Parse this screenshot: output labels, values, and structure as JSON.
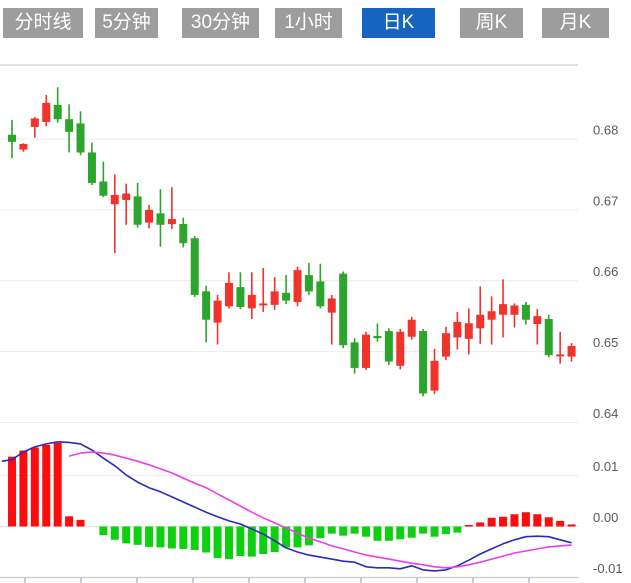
{
  "toolbar": {
    "tabs": [
      {
        "label": "分时线",
        "active": false
      },
      {
        "label": "5分钟",
        "active": false
      },
      {
        "label": "30分钟",
        "active": false
      },
      {
        "label": "1小时",
        "active": false
      },
      {
        "label": "日K",
        "active": true
      },
      {
        "label": "周K",
        "active": false
      },
      {
        "label": "月K",
        "active": false
      }
    ],
    "active_color": "#1565c0",
    "inactive_color": "#9d9d9d",
    "text_color": "#ffffff"
  },
  "chart_data": {
    "type": "candlestick",
    "subchart": "macd",
    "legend_position": "none",
    "grid": true,
    "price_axis": {
      "labels": [
        "0.68",
        "0.67",
        "0.66",
        "0.65",
        "0.64"
      ],
      "values": [
        0.68,
        0.67,
        0.66,
        0.65,
        0.64
      ],
      "range": [
        0.636,
        0.69
      ]
    },
    "macd_axis": {
      "labels": [
        "0.01",
        "0.00",
        "-0.01"
      ],
      "values": [
        0.01,
        0.0,
        -0.01
      ],
      "range": [
        -0.011,
        0.018
      ]
    },
    "candles_ohlc": [
      [
        0.6806,
        0.6827,
        0.6773,
        0.6796
      ],
      [
        0.6785,
        0.6794,
        0.6782,
        0.6793
      ],
      [
        0.6817,
        0.6831,
        0.6802,
        0.6829
      ],
      [
        0.6824,
        0.6862,
        0.6818,
        0.6851
      ],
      [
        0.6848,
        0.6873,
        0.6823,
        0.6828
      ],
      [
        0.6828,
        0.6849,
        0.6781,
        0.681
      ],
      [
        0.6822,
        0.6839,
        0.6777,
        0.6781
      ],
      [
        0.6781,
        0.6795,
        0.6735,
        0.6738
      ],
      [
        0.674,
        0.6768,
        0.6718,
        0.672
      ],
      [
        0.6708,
        0.675,
        0.6639,
        0.6721
      ],
      [
        0.6714,
        0.6737,
        0.6679,
        0.6723
      ],
      [
        0.6719,
        0.6738,
        0.6675,
        0.6679
      ],
      [
        0.6682,
        0.6707,
        0.6674,
        0.67
      ],
      [
        0.6695,
        0.6729,
        0.6648,
        0.6679
      ],
      [
        0.668,
        0.6732,
        0.6673,
        0.6687
      ],
      [
        0.668,
        0.6689,
        0.6647,
        0.6653
      ],
      [
        0.666,
        0.6663,
        0.6577,
        0.658
      ],
      [
        0.6585,
        0.6593,
        0.6513,
        0.6545
      ],
      [
        0.6541,
        0.658,
        0.651,
        0.6572
      ],
      [
        0.6564,
        0.6612,
        0.6561,
        0.6597
      ],
      [
        0.6591,
        0.6612,
        0.656,
        0.6563
      ],
      [
        0.6561,
        0.6612,
        0.6546,
        0.658
      ],
      [
        0.6566,
        0.6618,
        0.6556,
        0.6568
      ],
      [
        0.6566,
        0.6605,
        0.6559,
        0.6585
      ],
      [
        0.6583,
        0.6608,
        0.6567,
        0.6572
      ],
      [
        0.657,
        0.662,
        0.6564,
        0.6615
      ],
      [
        0.6608,
        0.6625,
        0.658,
        0.6585
      ],
      [
        0.6599,
        0.6624,
        0.6561,
        0.6564
      ],
      [
        0.6555,
        0.658,
        0.651,
        0.6575
      ],
      [
        0.661,
        0.6613,
        0.6505,
        0.6509
      ],
      [
        0.6513,
        0.6519,
        0.6469,
        0.6477
      ],
      [
        0.6477,
        0.6528,
        0.6474,
        0.6524
      ],
      [
        0.6522,
        0.654,
        0.6514,
        0.6519
      ],
      [
        0.6529,
        0.6533,
        0.6481,
        0.6486
      ],
      [
        0.648,
        0.6532,
        0.6475,
        0.6528
      ],
      [
        0.6521,
        0.6549,
        0.6517,
        0.6545
      ],
      [
        0.6529,
        0.6532,
        0.6437,
        0.6441
      ],
      [
        0.6445,
        0.6504,
        0.644,
        0.6487
      ],
      [
        0.6493,
        0.6535,
        0.6488,
        0.6526
      ],
      [
        0.652,
        0.6556,
        0.6503,
        0.6542
      ],
      [
        0.6518,
        0.6561,
        0.6496,
        0.654
      ],
      [
        0.6533,
        0.6592,
        0.6511,
        0.6552
      ],
      [
        0.6545,
        0.6578,
        0.651,
        0.6557
      ],
      [
        0.6552,
        0.6602,
        0.652,
        0.6567
      ],
      [
        0.6552,
        0.6568,
        0.6534,
        0.6565
      ],
      [
        0.6566,
        0.657,
        0.6538,
        0.6545
      ],
      [
        0.6539,
        0.656,
        0.651,
        0.655
      ],
      [
        0.6546,
        0.6552,
        0.6492,
        0.6495
      ],
      [
        0.6494,
        0.6528,
        0.6483,
        0.6496
      ],
      [
        0.6493,
        0.6512,
        0.6486,
        0.6508
      ]
    ],
    "macd_histogram": [
      0.0137,
      0.0149,
      0.0155,
      0.016,
      0.0164,
      0.002,
      0.0013,
      0.0,
      -0.0017,
      -0.0026,
      -0.0033,
      -0.0036,
      -0.004,
      -0.0041,
      -0.0043,
      -0.0044,
      -0.0046,
      -0.0051,
      -0.0062,
      -0.0064,
      -0.0058,
      -0.0059,
      -0.0054,
      -0.005,
      -0.0041,
      -0.0041,
      -0.0037,
      -0.0023,
      -0.0014,
      -0.0018,
      -0.0014,
      -0.002,
      -0.0028,
      -0.0028,
      -0.0025,
      -0.0022,
      -0.0014,
      -0.002,
      -0.0015,
      -0.0012,
      0.0003,
      0.0008,
      0.0017,
      0.0019,
      0.0024,
      0.0028,
      0.0024,
      0.0018,
      0.0011,
      0.0004
    ],
    "dif_lead": 0.0128,
    "dif": [
      0.0131,
      0.0146,
      0.0156,
      0.0162,
      0.0166,
      0.0165,
      0.0162,
      0.015,
      0.0134,
      0.0119,
      0.0101,
      0.0087,
      0.0076,
      0.0068,
      0.0058,
      0.0048,
      0.0038,
      0.0028,
      0.0019,
      0.0011,
      0.0005,
      -0.0005,
      -0.0015,
      -0.0028,
      -0.0042,
      -0.005,
      -0.0056,
      -0.006,
      -0.0064,
      -0.0068,
      -0.007,
      -0.0079,
      -0.0081,
      -0.0081,
      -0.0083,
      -0.0077,
      -0.0085,
      -0.0087,
      -0.0085,
      -0.0077,
      -0.0066,
      -0.0054,
      -0.0044,
      -0.0034,
      -0.0026,
      -0.002,
      -0.0019,
      -0.002,
      -0.0026,
      -0.0032
    ],
    "dea": [
      null,
      null,
      null,
      null,
      null,
      0.0138,
      0.0144,
      0.0146,
      0.0144,
      0.014,
      0.0134,
      0.0128,
      0.0121,
      0.0113,
      0.0105,
      0.0095,
      0.0085,
      0.0076,
      0.0064,
      0.0052,
      0.004,
      0.0028,
      0.0017,
      0.0007,
      -0.0003,
      -0.0013,
      -0.0023,
      -0.003,
      -0.0038,
      -0.0044,
      -0.005,
      -0.0056,
      -0.006,
      -0.0064,
      -0.0068,
      -0.0072,
      -0.0075,
      -0.0079,
      -0.0081,
      -0.0079,
      -0.0075,
      -0.007,
      -0.0064,
      -0.0058,
      -0.0052,
      -0.0048,
      -0.0044,
      -0.004,
      -0.0038,
      -0.0036
    ],
    "colors": {
      "up_candle": "#f0332b",
      "down_candle": "#2ba52b",
      "macd_up_bar": "#fb0d0d",
      "macd_down_bar": "#0fd00f",
      "dif_line": "#2a2ac0",
      "dea_line": "#e840e8",
      "grid_line": "#ececec",
      "zero_line": "#e2e2e2",
      "axis_line": "#cccccc",
      "tick_mark": "#b9c3cf",
      "label_text": "#595959"
    }
  }
}
